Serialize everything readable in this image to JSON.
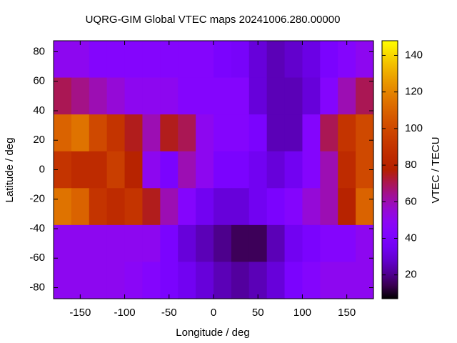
{
  "chart_data": {
    "type": "heatmap",
    "title": "UQRG-GIM Global VTEC maps 20241006.280.00000",
    "x_label": "Longitude / deg",
    "y_label": "Latitude / deg",
    "colorbar_label": "VTEC / TECU",
    "palette": "gnuplot",
    "x": [
      -170,
      -150,
      -130,
      -110,
      -90,
      -70,
      -50,
      -30,
      -10,
      10,
      30,
      50,
      70,
      90,
      110,
      130,
      150,
      170
    ],
    "y": [
      75,
      50,
      25,
      0,
      -25,
      -50,
      -75
    ],
    "z": [
      [
        50,
        50,
        45,
        45,
        45,
        45,
        45,
        45,
        45,
        40,
        38,
        30,
        25,
        28,
        32,
        40,
        45,
        50
      ],
      [
        70,
        65,
        60,
        55,
        50,
        50,
        50,
        45,
        45,
        45,
        45,
        30,
        25,
        25,
        30,
        45,
        60,
        70
      ],
      [
        110,
        115,
        100,
        90,
        75,
        60,
        75,
        70,
        50,
        45,
        45,
        40,
        25,
        25,
        45,
        70,
        90,
        100
      ],
      [
        90,
        85,
        85,
        95,
        80,
        50,
        40,
        60,
        50,
        40,
        40,
        35,
        30,
        35,
        45,
        60,
        85,
        100
      ],
      [
        115,
        110,
        90,
        85,
        90,
        75,
        60,
        45,
        35,
        30,
        30,
        35,
        40,
        45,
        55,
        60,
        80,
        110
      ],
      [
        50,
        50,
        50,
        50,
        50,
        50,
        40,
        30,
        25,
        20,
        15,
        15,
        25,
        35,
        40,
        45,
        45,
        50
      ],
      [
        50,
        50,
        50,
        50,
        48,
        45,
        40,
        35,
        30,
        25,
        22,
        25,
        30,
        40,
        45,
        50,
        50,
        50
      ]
    ],
    "xlim": [
      -180,
      180
    ],
    "ylim": [
      -87.5,
      87.5
    ],
    "zlim": [
      7,
      148
    ],
    "xticks": [
      -150,
      -100,
      -50,
      0,
      50,
      100,
      150
    ],
    "yticks": [
      -80,
      -60,
      -40,
      -20,
      0,
      20,
      40,
      60,
      80
    ],
    "zticks": [
      20,
      40,
      60,
      80,
      100,
      120,
      140
    ]
  }
}
